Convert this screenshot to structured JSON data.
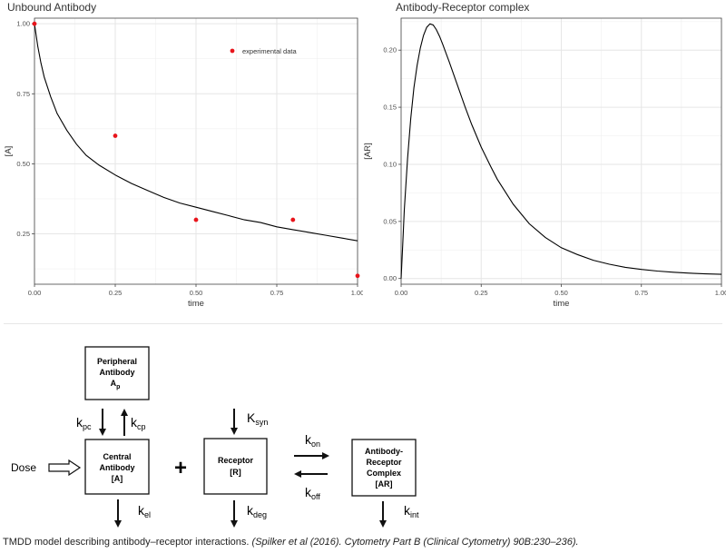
{
  "chart_data": [
    {
      "type": "line",
      "title": "Unbound Antibody",
      "xlabel": "time",
      "ylabel": "[A]",
      "xlim": [
        0,
        1
      ],
      "ylim": [
        0.07,
        1.02
      ],
      "x_ticks": [
        "0.00",
        "0.25",
        "0.50",
        "0.75",
        "1.00"
      ],
      "y_ticks": [
        "0.25",
        "0.50",
        "0.75",
        "1.00"
      ],
      "grid": true,
      "legend_position": "top-right",
      "series": [
        {
          "kind": "line",
          "color": "#000000",
          "x": [
            0,
            0.01,
            0.02,
            0.03,
            0.05,
            0.07,
            0.1,
            0.13,
            0.16,
            0.2,
            0.25,
            0.3,
            0.35,
            0.4,
            0.45,
            0.5,
            0.55,
            0.6,
            0.65,
            0.7,
            0.75,
            0.8,
            0.85,
            0.9,
            0.95,
            1.0
          ],
          "y": [
            1.0,
            0.92,
            0.86,
            0.81,
            0.74,
            0.68,
            0.62,
            0.57,
            0.53,
            0.495,
            0.46,
            0.43,
            0.405,
            0.38,
            0.36,
            0.345,
            0.33,
            0.315,
            0.3,
            0.29,
            0.275,
            0.265,
            0.255,
            0.245,
            0.235,
            0.225
          ]
        },
        {
          "name": "experimental data",
          "kind": "points",
          "color": "#e8141b",
          "x": [
            0,
            0.25,
            0.5,
            0.8,
            1.0
          ],
          "y": [
            1.0,
            0.6,
            0.3,
            0.3,
            0.1
          ]
        }
      ]
    },
    {
      "type": "line",
      "title": "Antibody-Receptor complex",
      "xlabel": "time",
      "ylabel": "[AR]",
      "xlim": [
        0,
        1
      ],
      "ylim": [
        -0.005,
        0.228
      ],
      "x_ticks": [
        "0.00",
        "0.25",
        "0.50",
        "0.75",
        "1.00"
      ],
      "y_ticks": [
        "0.00",
        "0.05",
        "0.10",
        "0.15",
        "0.20"
      ],
      "grid": true,
      "series": [
        {
          "kind": "line",
          "color": "#000000",
          "x": [
            0,
            0.005,
            0.01,
            0.02,
            0.03,
            0.04,
            0.05,
            0.06,
            0.07,
            0.08,
            0.09,
            0.1,
            0.11,
            0.12,
            0.13,
            0.15,
            0.17,
            0.2,
            0.22,
            0.25,
            0.28,
            0.3,
            0.35,
            0.4,
            0.45,
            0.5,
            0.55,
            0.6,
            0.65,
            0.7,
            0.75,
            0.8,
            0.85,
            0.9,
            0.95,
            1.0
          ],
          "y": [
            0.0,
            0.03,
            0.06,
            0.105,
            0.14,
            0.167,
            0.187,
            0.202,
            0.213,
            0.22,
            0.223,
            0.222,
            0.218,
            0.212,
            0.205,
            0.19,
            0.174,
            0.15,
            0.135,
            0.115,
            0.098,
            0.087,
            0.065,
            0.048,
            0.036,
            0.027,
            0.021,
            0.016,
            0.0125,
            0.0098,
            0.008,
            0.0065,
            0.0055,
            0.0047,
            0.0041,
            0.0037
          ]
        }
      ]
    }
  ],
  "diagram": {
    "peripheral": [
      "Peripheral",
      "Antibody",
      "A"
    ],
    "peripheral_sub": "p",
    "central": [
      "Central",
      "Antibody",
      "[A]"
    ],
    "receptor": [
      "Receptor",
      "[R]"
    ],
    "complex": [
      "Antibody-",
      "Receptor",
      "Complex",
      "[AR]"
    ],
    "dose": "Dose",
    "plus": "+",
    "rates": {
      "kpc": {
        "base": "k",
        "sub": "pc"
      },
      "kcp": {
        "base": "k",
        "sub": "cp"
      },
      "kel": {
        "base": "k",
        "sub": "el"
      },
      "ksyn": {
        "base": "K",
        "sub": "syn"
      },
      "kdeg": {
        "base": "k",
        "sub": "deg"
      },
      "kon": {
        "base": "k",
        "sub": "on"
      },
      "koff": {
        "base": "k",
        "sub": "off"
      },
      "kint": {
        "base": "k",
        "sub": "int"
      }
    }
  },
  "caption": {
    "text": "TMDD model describing antibody–receptor interactions.",
    "citation": "(Spilker et al (2016). Cytometry Part B (Clinical Cytometry) 90B:230–236)."
  }
}
